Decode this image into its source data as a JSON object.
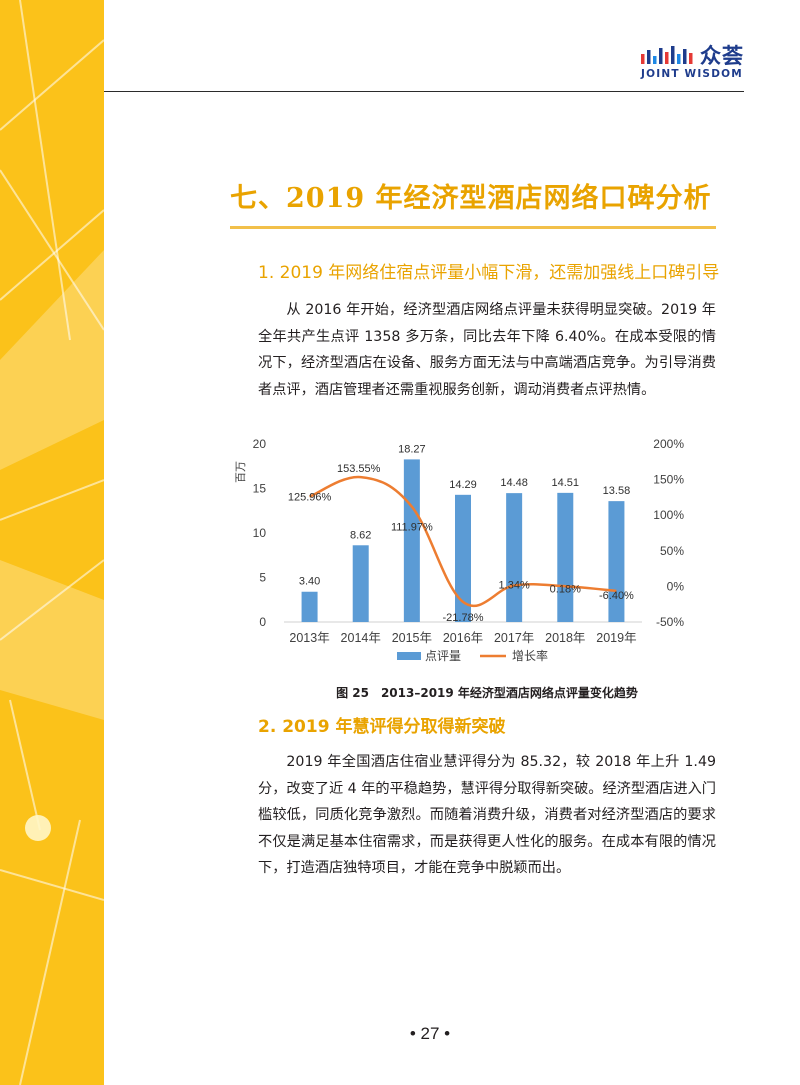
{
  "header": {
    "brand_name": "众荟",
    "brand_english": "JOINT WISDOM"
  },
  "chapter": {
    "title": "七、2019 年经济型酒店网络口碑分析"
  },
  "sections": [
    {
      "title": "1. 2019 年网络住宿点评量小幅下滑，还需加强线上口碑引导",
      "body": "从 2016 年开始，经济型酒店网络点评量未获得明显突破。2019 年全年共产生点评 1358 多万条，同比去年下降 6.40%。在成本受限的情况下，经济型酒店在设备、服务方面无法与中高端酒店竞争。为引导消费者点评，酒店管理者还需重视服务创新，调动消费者点评热情。"
    },
    {
      "title": "2. 2019 年慧评得分取得新突破",
      "body": "2019 年全国酒店住宿业慧评得分为 85.32，较 2018 年上升 1.49 分，改变了近 4 年的平稳趋势，慧评得分取得新突破。经济型酒店进入门槛较低，同质化竞争激烈。而随着消费升级，消费者对经济型酒店的要求不仅是满足基本住宿需求，而是获得更人性化的服务。在成本有限的情况下，打造酒店独特项目，才能在竞争中脱颖而出。"
    }
  ],
  "figure": {
    "caption": "图 25　2013–2019 年经济型酒店网络点评量变化趋势"
  },
  "chart_data": {
    "type": "bar",
    "categories": [
      "2013年",
      "2014年",
      "2015年",
      "2016年",
      "2017年",
      "2018年",
      "2019年"
    ],
    "series": [
      {
        "name": "点评量",
        "type": "bar",
        "axis": "left",
        "color": "#5b9bd5",
        "values": [
          3.4,
          8.62,
          18.27,
          14.29,
          14.48,
          14.51,
          13.58
        ],
        "labels": [
          "3.40",
          "8.62",
          "18.27",
          "14.29",
          "14.48",
          "14.51",
          "13.58"
        ]
      },
      {
        "name": "增长率",
        "type": "line",
        "axis": "right",
        "color": "#ed7d31",
        "values": [
          125.96,
          153.55,
          111.97,
          -21.78,
          1.34,
          0.18,
          -6.4
        ],
        "labels": [
          "125.96%",
          "153.55%",
          "111.97%",
          "-21.78%",
          "1.34%",
          "0.18%",
          "-6.40%"
        ]
      }
    ],
    "y_left": {
      "label": "百万",
      "min": 0,
      "max": 20,
      "ticks": [
        "0",
        "5",
        "10",
        "15",
        "20"
      ]
    },
    "y_right": {
      "min": -50,
      "max": 200,
      "ticks": [
        "-50%",
        "0%",
        "50%",
        "100%",
        "150%",
        "200%"
      ]
    },
    "grid": false,
    "legend_position": "bottom"
  },
  "footer": {
    "page_number": "• 27 •"
  },
  "colors": {
    "band": "#fbc21a",
    "accent": "#e9a300",
    "bar": "#5b9bd5",
    "line": "#ed7d31",
    "brand": "#1e3c8c"
  }
}
